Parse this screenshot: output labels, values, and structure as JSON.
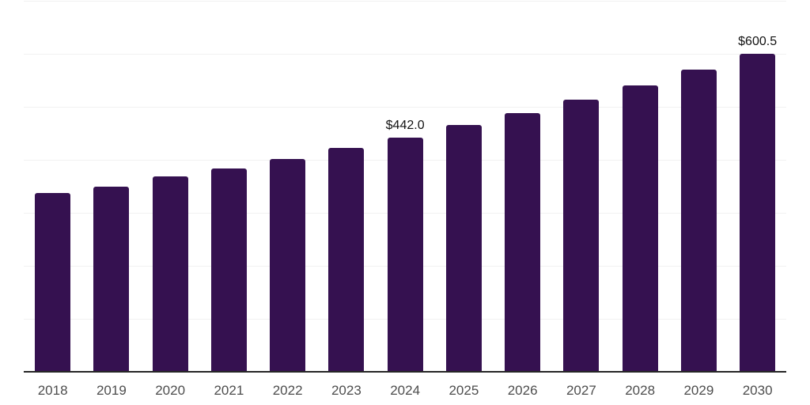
{
  "chart_data": {
    "type": "bar",
    "categories": [
      "2018",
      "2019",
      "2020",
      "2021",
      "2022",
      "2023",
      "2024",
      "2025",
      "2026",
      "2027",
      "2028",
      "2029",
      "2030"
    ],
    "values": [
      337,
      350,
      368,
      384,
      401,
      422,
      442,
      465,
      488,
      514,
      540,
      570,
      600.5
    ],
    "data_labels": [
      {
        "category": "2024",
        "text": "$442.0"
      },
      {
        "category": "2030",
        "text": "$600.5"
      }
    ],
    "title": "",
    "xlabel": "",
    "ylabel": "",
    "ylim": [
      0,
      700
    ],
    "y_tick_labels_visible": false,
    "gridline_interval": 100,
    "grid": true,
    "legend": "none",
    "colors": {
      "bar": "#351150",
      "gridline": "#f1f1f1",
      "axis_line": "#262626",
      "tick_label": "#4d4d4d",
      "data_label": "#111111",
      "background": "#ffffff"
    }
  }
}
